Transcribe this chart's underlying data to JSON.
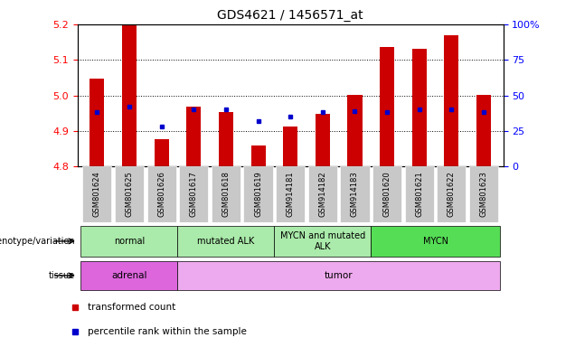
{
  "title": "GDS4621 / 1456571_at",
  "samples": [
    "GSM801624",
    "GSM801625",
    "GSM801626",
    "GSM801617",
    "GSM801618",
    "GSM801619",
    "GSM914181",
    "GSM914182",
    "GSM914183",
    "GSM801620",
    "GSM801621",
    "GSM801622",
    "GSM801623"
  ],
  "transformed_count": [
    5.048,
    5.2,
    4.878,
    4.968,
    4.952,
    4.858,
    4.912,
    4.948,
    5.002,
    5.135,
    5.132,
    5.168,
    5.002
  ],
  "percentile_rank": [
    38,
    42,
    28,
    40,
    40,
    32,
    35,
    38,
    39,
    38,
    40,
    40,
    38
  ],
  "ylim": [
    4.8,
    5.2
  ],
  "yticks": [
    4.8,
    4.9,
    5.0,
    5.1,
    5.2
  ],
  "right_yticks": [
    0,
    25,
    50,
    75,
    100
  ],
  "bar_color": "#cc0000",
  "percentile_color": "#0000cc",
  "label_bg": "#c8c8c8",
  "genotype_groups": [
    {
      "label": "normal",
      "start": 0,
      "end": 3,
      "dark": false
    },
    {
      "label": "mutated ALK",
      "start": 3,
      "end": 6,
      "dark": false
    },
    {
      "label": "MYCN and mutated\nALK",
      "start": 6,
      "end": 9,
      "dark": false
    },
    {
      "label": "MYCN",
      "start": 9,
      "end": 13,
      "dark": true
    }
  ],
  "tissue_groups": [
    {
      "label": "adrenal",
      "start": 0,
      "end": 3,
      "dark": true
    },
    {
      "label": "tumor",
      "start": 3,
      "end": 13,
      "dark": false
    }
  ],
  "geno_color_light": "#aaeaaa",
  "geno_color_dark": "#55dd55",
  "tissue_color_light": "#eeaaee",
  "tissue_color_dark": "#dd66dd",
  "legend": [
    {
      "label": "transformed count",
      "color": "#cc0000"
    },
    {
      "label": "percentile rank within the sample",
      "color": "#0000cc"
    }
  ]
}
